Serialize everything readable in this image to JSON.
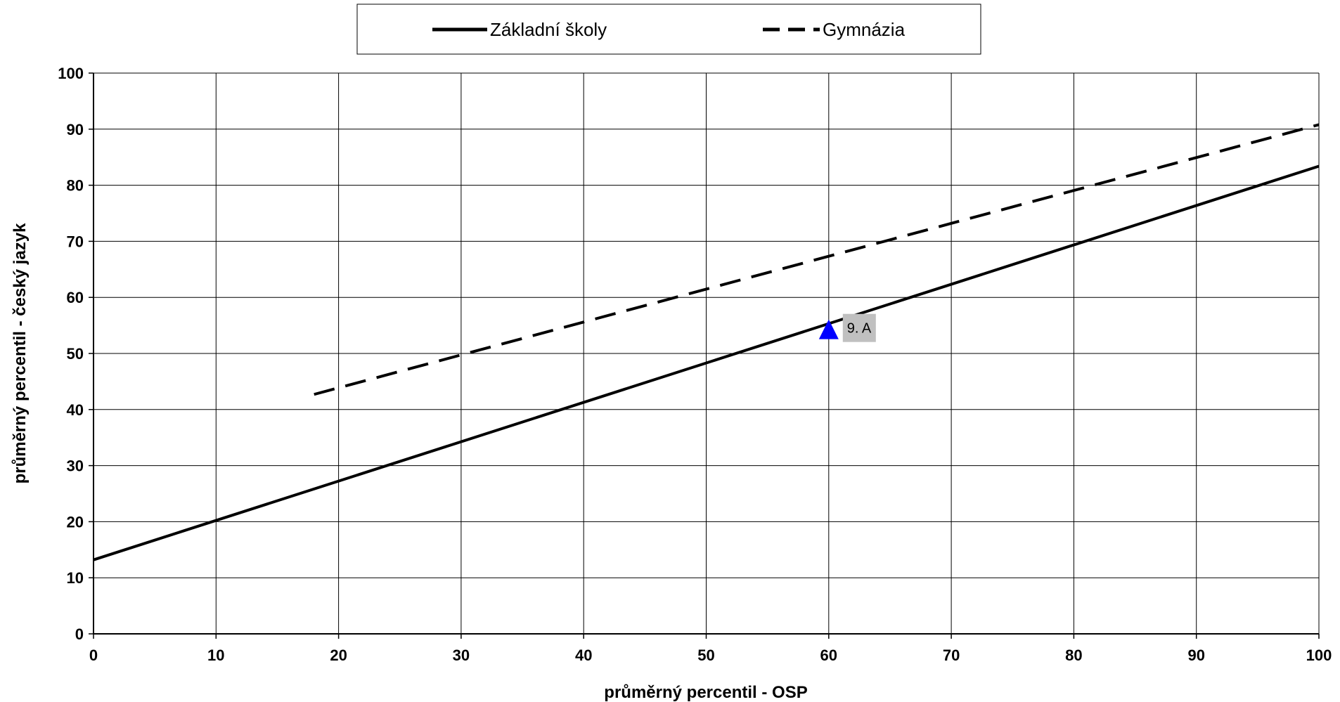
{
  "chart_data": {
    "type": "line",
    "title": "",
    "xlabel": "průměrný percentil - OSP",
    "ylabel": "průměrný percentil - český jazyk",
    "xlim": [
      0,
      100
    ],
    "ylim": [
      0,
      100
    ],
    "x_ticks": [
      0,
      10,
      20,
      30,
      40,
      50,
      60,
      70,
      80,
      90,
      100
    ],
    "y_ticks": [
      0,
      10,
      20,
      30,
      40,
      50,
      60,
      70,
      80,
      90,
      100
    ],
    "grid": true,
    "legend_position": "top-center",
    "series": [
      {
        "name": "Základní školy",
        "style": "solid",
        "color": "#000000",
        "points": [
          [
            0,
            13.2
          ],
          [
            100,
            83.4
          ]
        ]
      },
      {
        "name": "Gymnázia",
        "style": "dashed",
        "color": "#000000",
        "points": [
          [
            18,
            42.7
          ],
          [
            100,
            90.8
          ]
        ]
      }
    ],
    "markers": [
      {
        "label": "9. A",
        "x": 60,
        "y": 54.3,
        "shape": "triangle",
        "color": "#0000ff",
        "label_bg": "#c0c0c0"
      }
    ]
  }
}
